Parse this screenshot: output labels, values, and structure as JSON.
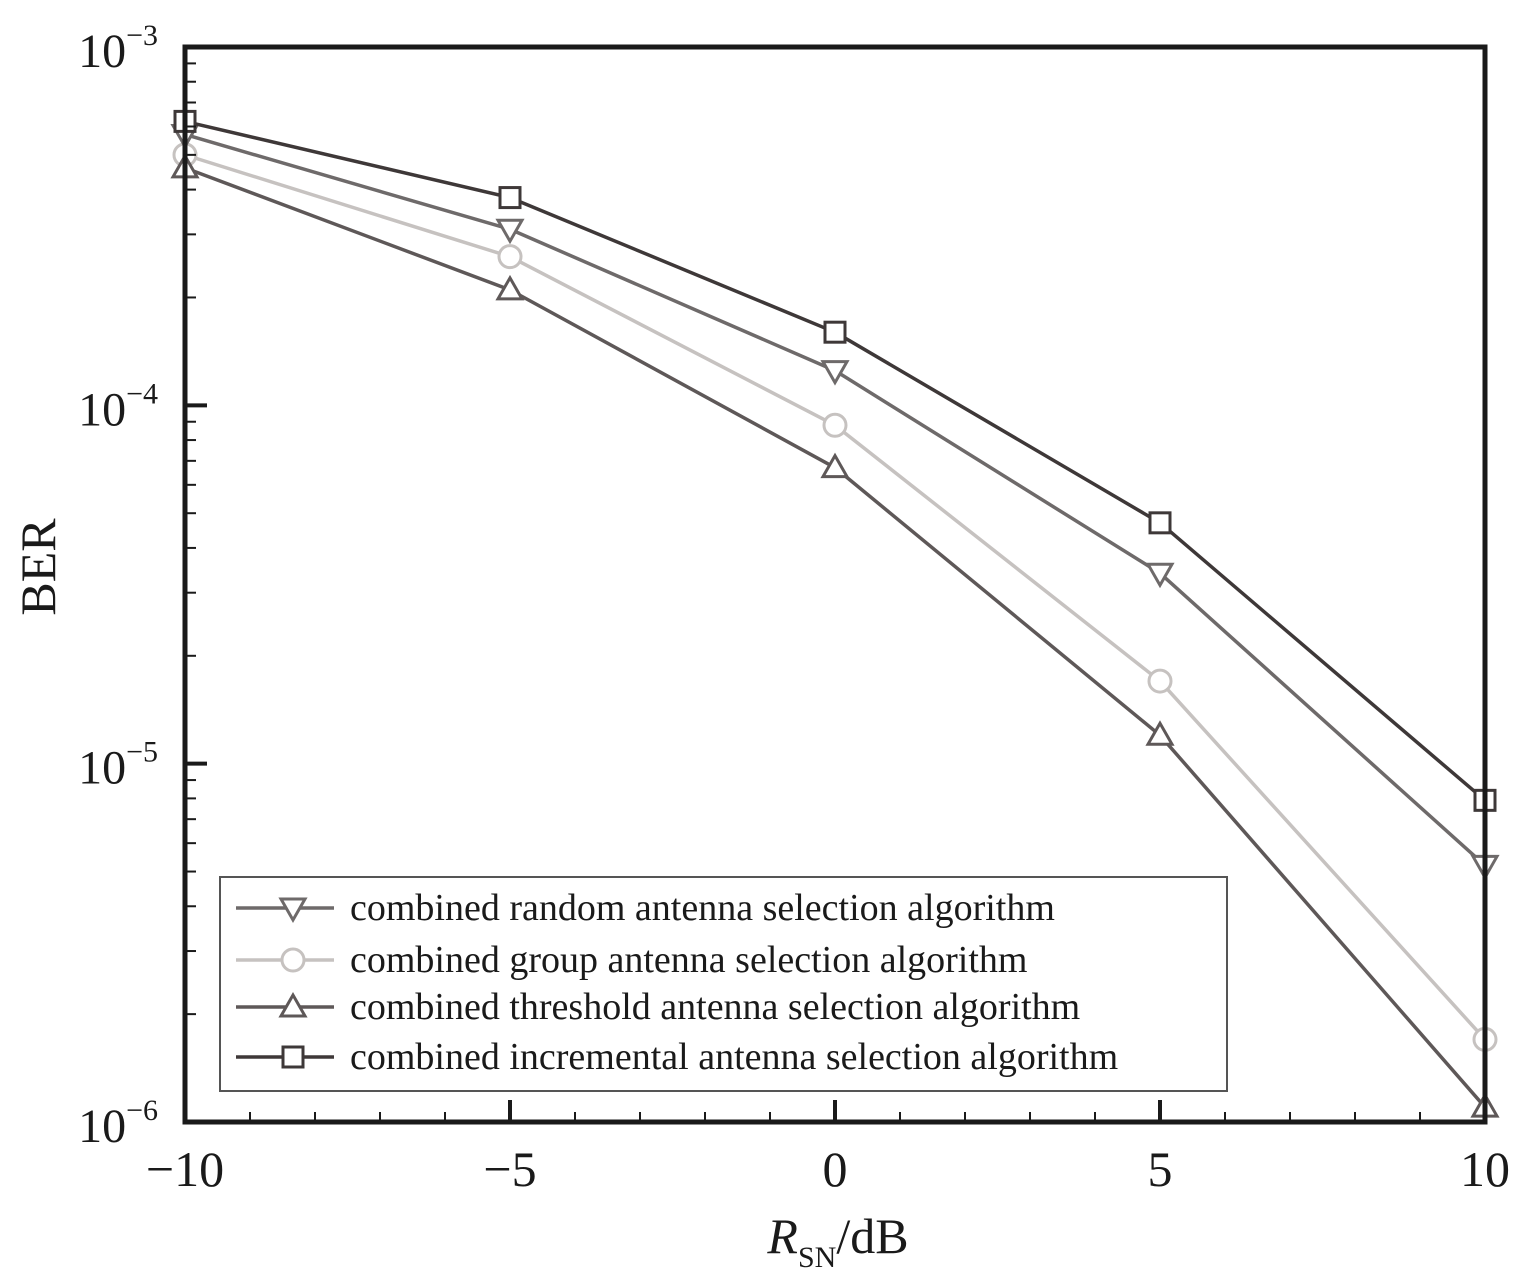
{
  "chart_data": {
    "type": "line",
    "title": "",
    "xlabel": {
      "main": "R",
      "sub": "SN",
      "unit": "/dB"
    },
    "ylabel": "BER",
    "yscale": "log",
    "xlim": [
      -10,
      10
    ],
    "ylim": [
      1e-06,
      0.001
    ],
    "x": [
      -10,
      -5,
      0,
      5,
      10
    ],
    "x_ticks": [
      {
        "value": -10,
        "label": "−10"
      },
      {
        "value": -5,
        "label": "−5"
      },
      {
        "value": 0,
        "label": "0"
      },
      {
        "value": 5,
        "label": "5"
      },
      {
        "value": 10,
        "label": "10"
      }
    ],
    "y_ticks": [
      {
        "value": 0.001,
        "base": "10",
        "exp": "−3"
      },
      {
        "value": 0.0001,
        "base": "10",
        "exp": "−4"
      },
      {
        "value": 1e-05,
        "base": "10",
        "exp": "−5"
      },
      {
        "value": 1e-06,
        "base": "10",
        "exp": "−6"
      }
    ],
    "grid": false,
    "legend_position": "bottom-left",
    "series": [
      {
        "name": "combined random antenna selection algorithm",
        "marker": "triangle-down",
        "color": "#6e6a6a",
        "values": [
          0.00057,
          0.00031,
          0.000125,
          3.4e-05,
          5.2e-06
        ]
      },
      {
        "name": "combined group antenna selection algorithm",
        "marker": "circle",
        "color": "#c6c2c0",
        "values": [
          0.0005,
          0.00026,
          8.8e-05,
          1.7e-05,
          1.7e-06
        ]
      },
      {
        "name": "combined threshold antenna selection algorithm",
        "marker": "triangle-up",
        "color": "#5e5858",
        "values": [
          0.00046,
          0.00021,
          6.7e-05,
          1.2e-05,
          1.1e-06
        ]
      },
      {
        "name": "combined incremental antenna selection algorithm",
        "marker": "square",
        "color": "#3e3838",
        "values": [
          0.00062,
          0.00038,
          0.00016,
          4.7e-05,
          7.9e-06
        ]
      }
    ]
  }
}
